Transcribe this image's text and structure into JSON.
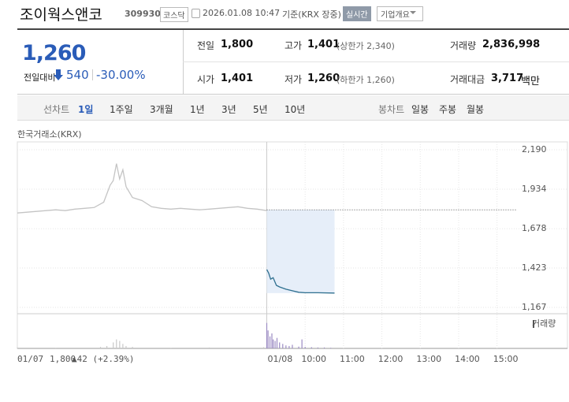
{
  "header": {
    "name": "조이웍스앤코",
    "code": "309930",
    "market": "코스닥",
    "datetime": "2026.01.08 10:47",
    "basis": "기준(KRX 장중)",
    "realtime": "실시간",
    "overview": "기업개요"
  },
  "price": {
    "current": "1,260",
    "change_label": "전일대비",
    "change": "540",
    "change_rate": "-30.00%"
  },
  "stats": [
    [
      {
        "label": "전일",
        "value": "1,800"
      },
      {
        "label": "고가",
        "value": "1,401",
        "note": "(상한가 2,340)"
      },
      {
        "label": "거래량",
        "value": "2,836,998"
      }
    ],
    [
      {
        "label": "시가",
        "value": "1,401"
      },
      {
        "label": "저가",
        "value": "1,260",
        "note": "(하한가 1,260)"
      },
      {
        "label": "거래대금",
        "value": "3,717",
        "unit": "백만"
      }
    ]
  ],
  "tabs": {
    "line_label": "선차트",
    "periods": [
      "1일",
      "1주일",
      "3개월",
      "1년",
      "3년",
      "5년",
      "10년"
    ],
    "candle_label": "봉차트",
    "candles": [
      "일봉",
      "주봉",
      "월봉"
    ]
  },
  "chart_data": {
    "type": "line",
    "source": "한국거래소(KRX)",
    "series": [
      {
        "color": "#c4c4c4",
        "x": [
          0,
          15,
          30,
          45,
          60,
          75,
          90,
          105,
          120,
          135,
          145,
          150,
          155,
          160,
          165,
          170,
          180,
          195,
          210,
          225,
          240,
          255,
          270,
          285,
          300,
          315,
          330,
          345,
          360,
          375,
          390
        ],
        "values": [
          1780,
          1785,
          1790,
          1795,
          1800,
          1795,
          1805,
          1810,
          1815,
          1850,
          1960,
          1990,
          2100,
          2000,
          2060,
          1950,
          1880,
          1860,
          1820,
          1810,
          1805,
          1810,
          1805,
          1800,
          1805,
          1810,
          1815,
          1820,
          1810,
          1805,
          1795
        ]
      },
      {
        "color": "#2e6f8f",
        "x": [
          390,
          393,
          396,
          400,
          405,
          410,
          420,
          430,
          440,
          450,
          470,
          496
        ],
        "values": [
          1413,
          1390,
          1350,
          1360,
          1310,
          1300,
          1285,
          1275,
          1265,
          1262,
          1262,
          1260
        ]
      }
    ],
    "xlim": [
      0,
      780
    ],
    "xticks": [
      {
        "value": 390,
        "label": "01/08"
      },
      {
        "value": 450,
        "label": "10:00"
      },
      {
        "value": 510,
        "label": "11:00"
      },
      {
        "value": 570,
        "label": "12:00"
      },
      {
        "value": 630,
        "label": "13:00"
      },
      {
        "value": 690,
        "label": "14:00"
      },
      {
        "value": 750,
        "label": "15:00"
      }
    ],
    "ylim": [
      1167,
      2190
    ],
    "yticks": [
      {
        "value": 2190,
        "label": "2,190"
      },
      {
        "value": 1934,
        "label": "1,934"
      },
      {
        "value": 1678,
        "label": "1,678"
      },
      {
        "value": 1423,
        "label": "1,423"
      },
      {
        "value": 1167,
        "label": "1,167"
      }
    ],
    "volume": {
      "label": "거래량",
      "vlim": [
        0,
        100000
      ],
      "series": [
        {
          "color": "#c8c8c8",
          "x": [
            0,
            60,
            130,
            140,
            150,
            155,
            160,
            165,
            170,
            180,
            240,
            300,
            385
          ],
          "values": [
            3000,
            2000,
            5000,
            8000,
            20000,
            30000,
            25000,
            15000,
            8000,
            5000,
            2000,
            3000,
            4000
          ]
        },
        {
          "color": "#9c8cc4",
          "x": [
            390,
            392,
            395,
            398,
            400,
            403,
            406,
            410,
            415,
            420,
            425,
            430,
            440,
            445,
            450,
            460,
            470,
            480,
            490
          ],
          "values": [
            85000,
            60000,
            40000,
            50000,
            30000,
            25000,
            35000,
            20000,
            15000,
            10000,
            8000,
            12000,
            6000,
            30000,
            5000,
            4000,
            3000,
            3000,
            2000
          ]
        }
      ]
    }
  },
  "footer": {
    "date": "01/07",
    "close": "1,800",
    "change": "▲42 (+2.39%)"
  }
}
